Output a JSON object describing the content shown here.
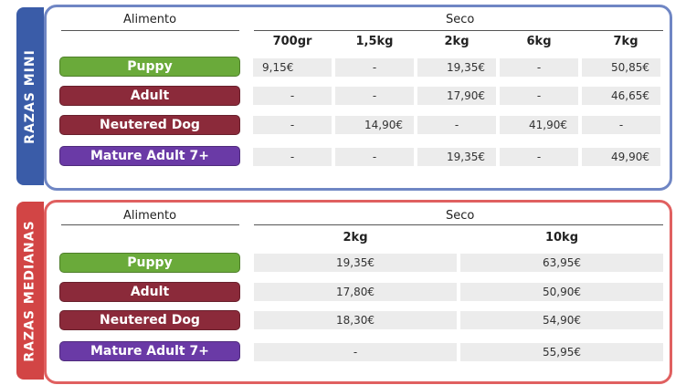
{
  "colors": {
    "mini_border": "#6f86c4",
    "mini_tab": "#3a5ca8",
    "medianas_border": "#e06060",
    "medianas_tab": "#d24545",
    "puppy": "#6aaa3a",
    "adult": "#8b2a3a",
    "neutered": "#8b2a3a",
    "mature": "#6a3aa6",
    "cell_bg": "#ececec"
  },
  "mini": {
    "side_label": "RAZAS MINI",
    "header_left": "Alimento",
    "header_right": "Seco",
    "columns": [
      "700gr",
      "1,5kg",
      "2kg",
      "6kg",
      "7kg"
    ],
    "rows": [
      {
        "label": "Puppy",
        "values": [
          "9,15€",
          "-",
          "19,35€",
          "-",
          "50,85€"
        ]
      },
      {
        "label": "Adult",
        "values": [
          "-",
          "-",
          "17,90€",
          "-",
          "46,65€"
        ]
      },
      {
        "label": "Neutered Dog",
        "values": [
          "-",
          "14,90€",
          "-",
          "41,90€",
          "-"
        ]
      },
      {
        "label": "Mature Adult 7+",
        "values": [
          "-",
          "-",
          "19,35€",
          "-",
          "49,90€"
        ]
      }
    ]
  },
  "medianas": {
    "side_label": "RAZAS MEDIANAS",
    "header_left": "Alimento",
    "header_right": "Seco",
    "columns": [
      "2kg",
      "10kg"
    ],
    "rows": [
      {
        "label": "Puppy",
        "values": [
          "19,35€",
          "63,95€"
        ]
      },
      {
        "label": "Adult",
        "values": [
          "17,80€",
          "50,90€"
        ]
      },
      {
        "label": "Neutered Dog",
        "values": [
          "18,30€",
          "54,90€"
        ]
      },
      {
        "label": "Mature Adult 7+",
        "values": [
          "-",
          "55,95€"
        ]
      }
    ]
  }
}
